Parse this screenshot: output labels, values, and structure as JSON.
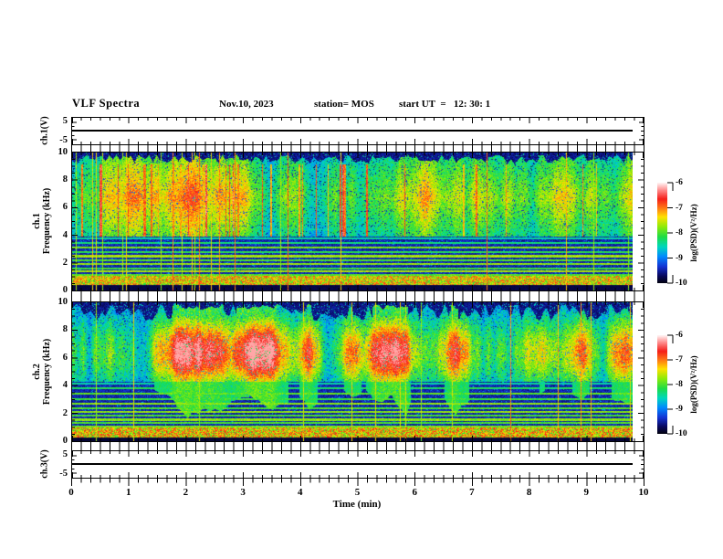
{
  "header": {
    "title": "VLF Spectra",
    "date": "Nov.10, 2023",
    "station": "station= MOS",
    "start_ut": "start UT  =   12: 30: 1"
  },
  "xaxis": {
    "label": "Time (min)",
    "ticks": [
      "0",
      "1",
      "2",
      "3",
      "4",
      "5",
      "6",
      "7",
      "8",
      "9",
      "10"
    ]
  },
  "panels": {
    "ch1_wave": {
      "ylabel": "ch.1(V)",
      "yticks": [
        "5",
        "-5"
      ]
    },
    "ch1_spec": {
      "ylabel1": "ch.1",
      "ylabel2": "Frequency (kHz)",
      "yticks": [
        "10",
        "8",
        "6",
        "4",
        "2",
        "0"
      ]
    },
    "ch2_spec": {
      "ylabel1": "ch.2",
      "ylabel2": "Frequency (kHz)",
      "yticks": [
        "10",
        "8",
        "6",
        "4",
        "2",
        "0"
      ]
    },
    "ch3_wave": {
      "ylabel": "ch.3(V)",
      "yticks": [
        "5",
        "-5"
      ]
    }
  },
  "colorbar": {
    "label": "log(PSD)(V²/Hz)",
    "ticks": [
      "-6",
      "-7",
      "-8",
      "-9",
      "-10"
    ],
    "range": [
      -10,
      -6
    ]
  },
  "colors": {
    "background": "#ffffff",
    "axis": "#000000",
    "scale_stops": [
      [
        0.0,
        "#020212"
      ],
      [
        0.07,
        "#08085f"
      ],
      [
        0.16,
        "#1432d2"
      ],
      [
        0.26,
        "#0087ff"
      ],
      [
        0.36,
        "#00d7be"
      ],
      [
        0.46,
        "#1edc46"
      ],
      [
        0.56,
        "#8ceb0a"
      ],
      [
        0.66,
        "#ffe100"
      ],
      [
        0.75,
        "#ff7814"
      ],
      [
        0.84,
        "#f51e19"
      ],
      [
        0.93,
        "#ff8c8c"
      ],
      [
        1.0,
        "#fff0f0"
      ]
    ]
  },
  "chart_data": [
    {
      "type": "line",
      "panel": "ch.1 voltage strip",
      "ylabel": "ch.1(V)",
      "yticks": [
        5,
        -5
      ],
      "xlim_min": [
        0,
        10
      ],
      "series": [
        {
          "name": "ch.1 waveform",
          "description": "flat trace at 0 V from 0 to ~9.8 min"
        }
      ]
    },
    {
      "type": "heatmap",
      "panel": "ch.1 spectrogram",
      "ylabel": "Frequency (kHz)",
      "ylim": [
        0,
        10
      ],
      "xlim_min": [
        0,
        10
      ],
      "colorbar_label": "log(PSD)(V²/Hz)",
      "colorbar_range": [
        -10,
        -6
      ],
      "features": [
        {
          "band_kHz": [
            4.0,
            9.4
          ],
          "psd": "-8 to -7.5 diffuse green/cyan with frequent red/orange vertical streaks"
        },
        {
          "band_kHz": [
            1.1,
            4.0
          ],
          "psd": "about -9.5 dark blue/black with many narrowband cyan horizontal lines"
        },
        {
          "band_kHz": [
            0.4,
            1.1
          ],
          "psd": "about -7.5 bright speckled green/yellow band with red dots"
        },
        {
          "band_kHz": [
            9.4,
            10.0
          ],
          "psd": "about -10 dark navy"
        },
        {
          "other": "full-height impulsive vertical lines (sferics) throughout record"
        }
      ]
    },
    {
      "type": "heatmap",
      "panel": "ch.2 spectrogram",
      "ylabel": "Frequency (kHz)",
      "ylim": [
        0,
        10
      ],
      "xlim_min": [
        0,
        10
      ],
      "colorbar_label": "log(PSD)(V²/Hz)",
      "colorbar_range": [
        -10,
        -6
      ],
      "features": [
        {
          "band_kHz": [
            4.5,
            9.0
          ],
          "psd": "-7 to -6.5 intense red emission blobs recurring every ~0.2-0.5 min with yellow/green fringes"
        },
        {
          "band_kHz": [
            1.0,
            4.5
          ],
          "psd": "about -9.5 dark with narrowband cyan lines and green vertical tails below blobs"
        },
        {
          "band_kHz": [
            0.3,
            1.0
          ],
          "psd": "about -7.5 bright speckled band"
        },
        {
          "band_kHz": [
            9.5,
            10.0
          ],
          "psd": "about -10 dark navy with green spikes"
        }
      ]
    },
    {
      "type": "line",
      "panel": "ch.3 voltage strip",
      "ylabel": "ch.3(V)",
      "yticks": [
        5,
        -5
      ],
      "xlim_min": [
        0,
        10
      ],
      "series": [
        {
          "name": "ch.3 waveform",
          "description": "flat trace at 0 V from 0 to ~9.8 min"
        }
      ]
    }
  ]
}
